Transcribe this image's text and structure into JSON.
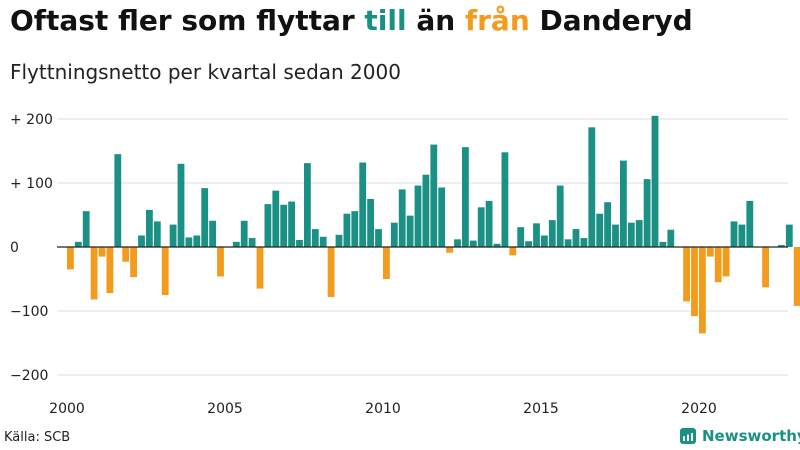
{
  "title": {
    "part1": "Oftast fler som flyttar ",
    "word_to": "till",
    "part2": " än ",
    "word_from": "från",
    "part3": " Danderyd"
  },
  "subtitle": "Flyttningsnetto per kvartal sedan 2000",
  "source": "Källa: SCB",
  "brand": "Newsworthy",
  "colors": {
    "positive": "#1a9184",
    "negative": "#f29b1c",
    "grid": "#dddddd",
    "zero_line": "#222222"
  },
  "chart_data": {
    "type": "bar",
    "x_start": "2000 Q1",
    "ylim": [
      -200,
      220
    ],
    "yticks": [
      {
        "value": 200,
        "label": "+ 200"
      },
      {
        "value": 100,
        "label": "+ 100"
      },
      {
        "value": 0,
        "label": "0"
      },
      {
        "value": -100,
        "label": "−100"
      },
      {
        "value": -200,
        "label": "−200"
      }
    ],
    "xticks": [
      {
        "year": 2000,
        "label": "2000"
      },
      {
        "year": 2005,
        "label": "2005"
      },
      {
        "year": 2010,
        "label": "2010"
      },
      {
        "year": 2015,
        "label": "2015"
      },
      {
        "year": 2020,
        "label": "2020"
      }
    ],
    "grid": "horizontal",
    "values": [
      -35,
      8,
      56,
      -82,
      -15,
      -72,
      145,
      -23,
      -47,
      18,
      58,
      40,
      -75,
      35,
      130,
      15,
      18,
      92,
      41,
      -46,
      0,
      8,
      41,
      14,
      -65,
      67,
      88,
      66,
      71,
      11,
      131,
      28,
      16,
      -78,
      19,
      52,
      56,
      132,
      75,
      28,
      -50,
      38,
      90,
      49,
      96,
      113,
      160,
      93,
      -9,
      12,
      156,
      10,
      62,
      72,
      5,
      148,
      -13,
      31,
      9,
      37,
      18,
      42,
      96,
      12,
      28,
      14,
      187,
      52,
      70,
      35,
      135,
      38,
      42,
      106,
      205,
      8,
      27,
      0,
      -85,
      -108,
      -135,
      -15,
      -55,
      -46,
      40,
      35,
      72,
      0,
      -63,
      0,
      3,
      35,
      -92,
      -35
    ]
  }
}
